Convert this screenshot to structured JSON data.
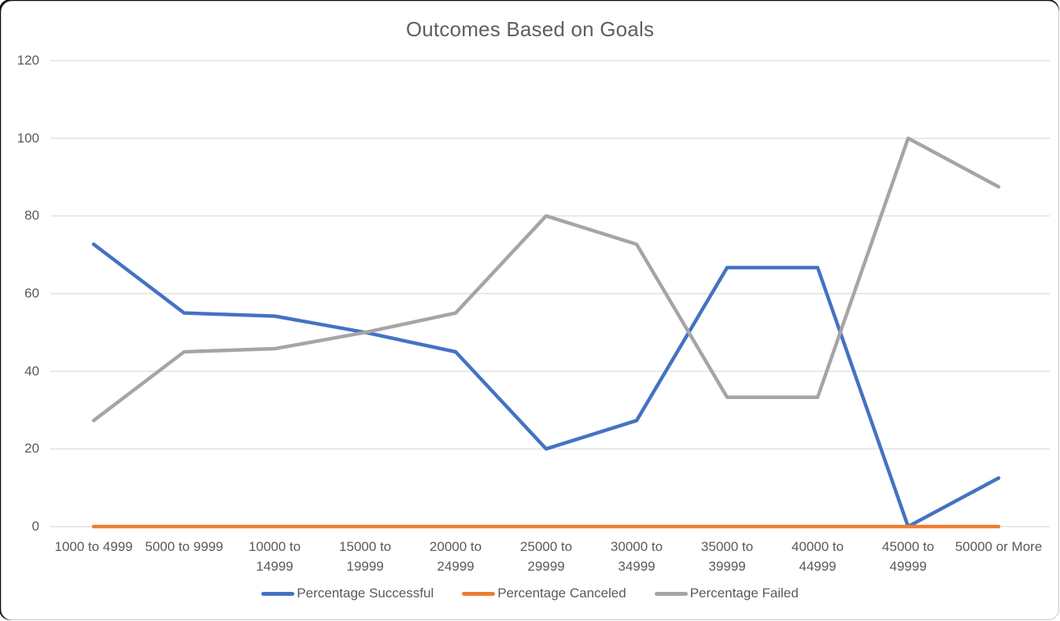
{
  "chart_data": {
    "type": "line",
    "title": "Outcomes Based on Goals",
    "xlabel": "",
    "ylabel": "",
    "ylim": [
      0,
      120
    ],
    "yticks": [
      0,
      20,
      40,
      60,
      80,
      100,
      120
    ],
    "grid": true,
    "legend_position": "bottom",
    "categories": [
      "1000 to 4999",
      "5000 to 9999",
      "10000 to 14999",
      "15000 to 19999",
      "20000 to 24999",
      "25000 to 29999",
      "30000 to 34999",
      "35000 to 39999",
      "40000 to 44999",
      "45000 to 49999",
      "50000 or More"
    ],
    "series": [
      {
        "name": "Percentage Successful",
        "color": "#4472C4",
        "values": [
          72.7,
          55,
          54.2,
          50,
          45,
          20,
          27.3,
          66.7,
          66.7,
          0,
          12.5
        ]
      },
      {
        "name": "Percentage Canceled",
        "color": "#ED7D31",
        "values": [
          0,
          0,
          0,
          0,
          0,
          0,
          0,
          0,
          0,
          0,
          0
        ]
      },
      {
        "name": "Percentage Failed",
        "color": "#A5A5A5",
        "values": [
          27.3,
          45,
          45.8,
          50,
          55,
          80,
          72.7,
          33.3,
          33.3,
          100,
          87.5
        ]
      }
    ]
  },
  "colors": {
    "gridline": "#D9D9D9",
    "axis_text": "#595959",
    "title_text": "#5F5F5F",
    "background": "#FFFFFF"
  }
}
